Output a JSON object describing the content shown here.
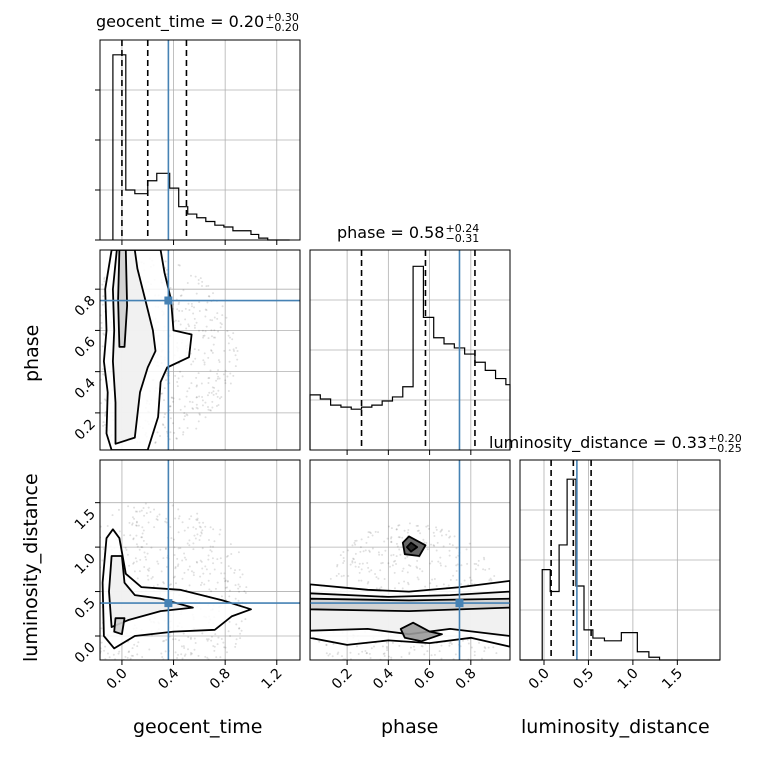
{
  "chart_data": {
    "type": "corner",
    "parameters": [
      "geocent_time",
      "phase",
      "luminosity_distance"
    ],
    "truths": {
      "geocent_time": 0.36,
      "phase": 0.745,
      "luminosity_distance": 0.37
    },
    "titles": [
      {
        "param": "geocent_time",
        "text": "geocent_time = 0.20",
        "plus": "+0.30",
        "minus": "−0.20"
      },
      {
        "param": "phase",
        "text": "phase = 0.58",
        "plus": "+0.24",
        "minus": "−0.31"
      },
      {
        "param": "luminosity_distance",
        "text": "luminosity_distance = 0.33",
        "plus": "+0.20",
        "minus": "−0.25"
      }
    ],
    "axes": {
      "geocent_time": {
        "label": "geocent_time",
        "range": [
          -0.17,
          1.38
        ],
        "ticks": [
          "0.0",
          "0.4",
          "0.8",
          "1.2"
        ],
        "tick_values": [
          0.0,
          0.4,
          0.8,
          1.2
        ]
      },
      "phase": {
        "label": "phase",
        "range": [
          0.02,
          0.99
        ],
        "ticks": [
          "0.2",
          "0.4",
          "0.6",
          "0.8"
        ],
        "tick_values": [
          0.2,
          0.4,
          0.6,
          0.8
        ]
      },
      "luminosity_distance": {
        "label": "luminosity_distance",
        "range": [
          -0.27,
          1.98
        ],
        "ticks": [
          "0.0",
          "0.5",
          "1.0",
          "1.5"
        ],
        "tick_values": [
          0.0,
          0.5,
          1.0,
          1.5
        ]
      }
    },
    "histograms": {
      "geocent_time": {
        "edges": [
          -0.07,
          0.03,
          0.1,
          0.2,
          0.27,
          0.37,
          0.44,
          0.51,
          0.58,
          0.65,
          0.72,
          0.79,
          0.86,
          0.93,
          1.0,
          1.06,
          1.13,
          1.3
        ],
        "counts": [
          1.0,
          0.27,
          0.25,
          0.32,
          0.36,
          0.28,
          0.18,
          0.14,
          0.12,
          0.1,
          0.08,
          0.07,
          0.05,
          0.05,
          0.03,
          0.01,
          0.0
        ],
        "quantiles": [
          0.0,
          0.2,
          0.5
        ],
        "ymax": 1.08
      },
      "phase": {
        "edges": [
          0.02,
          0.07,
          0.12,
          0.17,
          0.22,
          0.27,
          0.32,
          0.37,
          0.42,
          0.47,
          0.52,
          0.57,
          0.62,
          0.67,
          0.72,
          0.77,
          0.82,
          0.87,
          0.92,
          0.97,
          0.99
        ],
        "counts": [
          0.27,
          0.25,
          0.22,
          0.21,
          0.2,
          0.21,
          0.22,
          0.24,
          0.26,
          0.31,
          0.9,
          0.65,
          0.55,
          0.52,
          0.5,
          0.47,
          0.43,
          0.39,
          0.35,
          0.32
        ],
        "quantiles": [
          0.27,
          0.58,
          0.82
        ],
        "ymax": 0.98
      },
      "luminosity_distance": {
        "edges": [
          -0.27,
          -0.02,
          0.07,
          0.17,
          0.26,
          0.36,
          0.45,
          0.55,
          0.68,
          0.87,
          1.05,
          1.18,
          1.3,
          1.98
        ],
        "counts": [
          0.0,
          0.33,
          0.25,
          0.42,
          0.66,
          0.27,
          0.11,
          0.08,
          0.07,
          0.1,
          0.03,
          0.01,
          0.0
        ],
        "quantiles": [
          0.08,
          0.33,
          0.53
        ],
        "ymax": 0.73
      }
    },
    "contours_2d": {
      "phase_vs_geocent_time": [
        [
          [
            -0.08,
            0.99
          ],
          [
            -0.13,
            0.8
          ],
          [
            -0.12,
            0.6
          ],
          [
            -0.14,
            0.45
          ],
          [
            -0.11,
            0.3
          ],
          [
            -0.12,
            0.1
          ],
          [
            -0.08,
            0.02
          ],
          [
            0.2,
            0.02
          ],
          [
            0.28,
            0.18
          ],
          [
            0.3,
            0.35
          ],
          [
            0.35,
            0.42
          ],
          [
            0.52,
            0.47
          ],
          [
            0.54,
            0.58
          ],
          [
            0.4,
            0.6
          ],
          [
            0.38,
            0.75
          ],
          [
            0.33,
            0.88
          ],
          [
            0.3,
            0.99
          ]
        ],
        [
          [
            -0.04,
            0.99
          ],
          [
            -0.07,
            0.8
          ],
          [
            -0.06,
            0.6
          ],
          [
            -0.07,
            0.45
          ],
          [
            -0.05,
            0.25
          ],
          [
            -0.05,
            0.05
          ],
          [
            0.1,
            0.08
          ],
          [
            0.14,
            0.3
          ],
          [
            0.2,
            0.42
          ],
          [
            0.26,
            0.5
          ],
          [
            0.24,
            0.6
          ],
          [
            0.18,
            0.75
          ],
          [
            0.12,
            0.9
          ],
          [
            0.1,
            0.99
          ]
        ],
        [
          [
            -0.02,
            0.99
          ],
          [
            -0.03,
            0.75
          ],
          [
            -0.02,
            0.52
          ],
          [
            0.02,
            0.52
          ],
          [
            0.04,
            0.72
          ],
          [
            0.03,
            0.99
          ]
        ]
      ],
      "luminosity_distance_vs_geocent_time": [
        [
          [
            -0.12,
            1.1
          ],
          [
            -0.15,
            0.6
          ],
          [
            -0.14,
            0.0
          ],
          [
            -0.06,
            -0.14
          ],
          [
            0.1,
            0.0
          ],
          [
            0.4,
            0.05
          ],
          [
            0.72,
            0.07
          ],
          [
            0.85,
            0.22
          ],
          [
            1.0,
            0.3
          ],
          [
            0.78,
            0.4
          ],
          [
            0.45,
            0.52
          ],
          [
            0.15,
            0.55
          ],
          [
            0.03,
            0.7
          ],
          [
            -0.02,
            1.1
          ],
          [
            -0.07,
            1.2
          ]
        ],
        [
          [
            -0.08,
            0.9
          ],
          [
            -0.1,
            0.5
          ],
          [
            -0.08,
            0.1
          ],
          [
            0.05,
            0.18
          ],
          [
            0.3,
            0.28
          ],
          [
            0.55,
            0.32
          ],
          [
            0.3,
            0.42
          ],
          [
            0.1,
            0.46
          ],
          [
            0.02,
            0.6
          ],
          [
            0.0,
            0.9
          ]
        ],
        [
          [
            -0.05,
            0.2
          ],
          [
            -0.06,
            0.05
          ],
          [
            0.0,
            0.02
          ],
          [
            0.02,
            0.2
          ]
        ]
      ],
      "luminosity_distance_vs_phase": [
        [
          [
            0.02,
            0.58
          ],
          [
            0.3,
            0.52
          ],
          [
            0.5,
            0.5
          ],
          [
            0.75,
            0.55
          ],
          [
            0.99,
            0.62
          ],
          [
            0.99,
            -0.12
          ],
          [
            0.8,
            -0.02
          ],
          [
            0.6,
            -0.08
          ],
          [
            0.4,
            -0.05
          ],
          [
            0.2,
            -0.1
          ],
          [
            0.02,
            -0.02
          ]
        ],
        [
          [
            0.02,
            0.48
          ],
          [
            0.4,
            0.44
          ],
          [
            0.7,
            0.46
          ],
          [
            0.99,
            0.5
          ],
          [
            0.99,
            0.0
          ],
          [
            0.7,
            0.08
          ],
          [
            0.5,
            0.02
          ],
          [
            0.3,
            0.08
          ],
          [
            0.02,
            0.06
          ]
        ],
        [
          [
            0.02,
            0.42
          ],
          [
            0.5,
            0.4
          ],
          [
            0.99,
            0.42
          ],
          [
            0.99,
            0.32
          ],
          [
            0.5,
            0.28
          ],
          [
            0.02,
            0.3
          ]
        ],
        [
          [
            0.46,
            0.08
          ],
          [
            0.52,
            0.15
          ],
          [
            0.6,
            0.05
          ],
          [
            0.66,
            0.02
          ],
          [
            0.56,
            -0.06
          ],
          [
            0.48,
            -0.02
          ]
        ],
        [
          [
            0.5,
            1.12
          ],
          [
            0.58,
            1.02
          ],
          [
            0.55,
            0.9
          ],
          [
            0.48,
            0.92
          ],
          [
            0.47,
            1.05
          ]
        ],
        [
          [
            0.51,
            1.05
          ],
          [
            0.54,
            1.0
          ],
          [
            0.51,
            0.95
          ],
          [
            0.49,
            1.0
          ]
        ]
      ]
    }
  }
}
